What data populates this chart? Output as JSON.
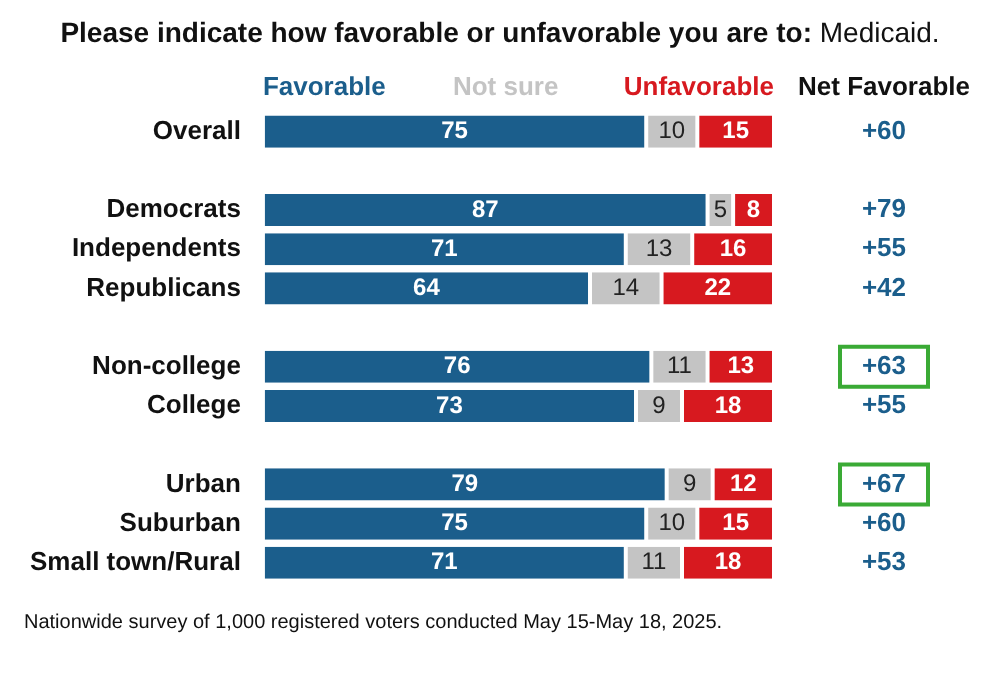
{
  "chart_data": {
    "type": "bar",
    "orientation": "horizontal",
    "stacked": true,
    "title": "Please indicate how favorable or unfavorable you are to: Medicaid.",
    "categories": [
      "Overall",
      null,
      "Democrats",
      "Independents",
      "Republicans",
      null,
      "Non-college",
      "College",
      null,
      "Urban",
      "Suburban",
      "Small town/Rural"
    ],
    "series": [
      {
        "name": "Favorable",
        "color": "#1b5e8c",
        "values": [
          75,
          null,
          87,
          71,
          64,
          null,
          76,
          73,
          null,
          79,
          75,
          71
        ]
      },
      {
        "name": "Not sure",
        "color": "#c4c4c4",
        "values": [
          10,
          null,
          5,
          13,
          14,
          null,
          11,
          9,
          null,
          9,
          10,
          11
        ]
      },
      {
        "name": "Unfavorable",
        "color": "#d7191f",
        "values": [
          15,
          null,
          8,
          16,
          22,
          null,
          13,
          18,
          null,
          12,
          15,
          18
        ]
      }
    ],
    "xlim": [
      0,
      100
    ],
    "tick_labels": "y",
    "data_labels": true,
    "legend": "top",
    "annotations": [
      "Net Favorable",
      "+60",
      "+79",
      "+55",
      "+42",
      "+63",
      "+55",
      "+67",
      "+60",
      "+53",
      "Nationwide survey of 1,000 registered voters conducted May 15-May 18, 2025."
    ]
  }
}
